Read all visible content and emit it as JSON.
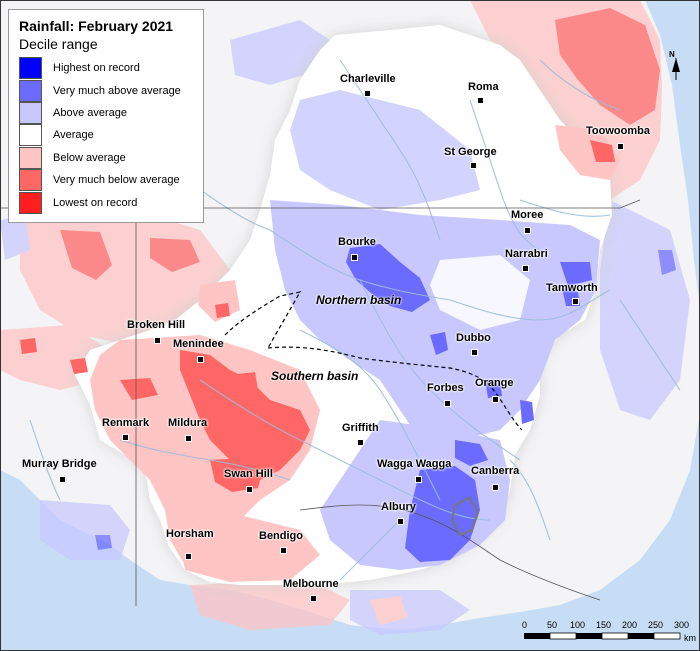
{
  "legend": {
    "title": "Rainfall: February 2021",
    "subtitle": "Decile range",
    "items": [
      {
        "label": "Highest on record",
        "color": "#0000ff"
      },
      {
        "label": "Very much above average",
        "color": "#6b6bff"
      },
      {
        "label": "Above average",
        "color": "#c8c8ff"
      },
      {
        "label": "Average",
        "color": "#ffffff"
      },
      {
        "label": "Below average",
        "color": "#ffc4c4"
      },
      {
        "label": "Very much below average",
        "color": "#ff6666"
      },
      {
        "label": "Lowest on record",
        "color": "#ff1f1f"
      }
    ]
  },
  "towns": {
    "charleville": "Charleville",
    "roma": "Roma",
    "toowoomba": "Toowoomba",
    "st_george": "St George",
    "moree": "Moree",
    "bourke": "Bourke",
    "narrabri": "Narrabri",
    "tamworth": "Tamworth",
    "broken_hill": "Broken Hill",
    "menindee": "Menindee",
    "dubbo": "Dubbo",
    "orange": "Orange",
    "forbes": "Forbes",
    "renmark": "Renmark",
    "mildura": "Mildura",
    "griffith": "Griffith",
    "murray_bridge": "Murray Bridge",
    "wagga_wagga": "Wagga Wagga",
    "canberra": "Canberra",
    "swan_hill": "Swan Hill",
    "albury": "Albury",
    "horsham": "Horsham",
    "bendigo": "Bendigo",
    "melbourne": "Melbourne"
  },
  "basins": {
    "northern": "Northern basin",
    "southern": "Southern basin"
  },
  "scale": {
    "ticks": [
      "0",
      "50",
      "100",
      "150",
      "200",
      "250",
      "300"
    ],
    "unit": "km"
  },
  "north_arrow": "N",
  "colors": {
    "sea": "#c6ddf5",
    "land": "#ffffff",
    "river": "#9cbcd8"
  }
}
